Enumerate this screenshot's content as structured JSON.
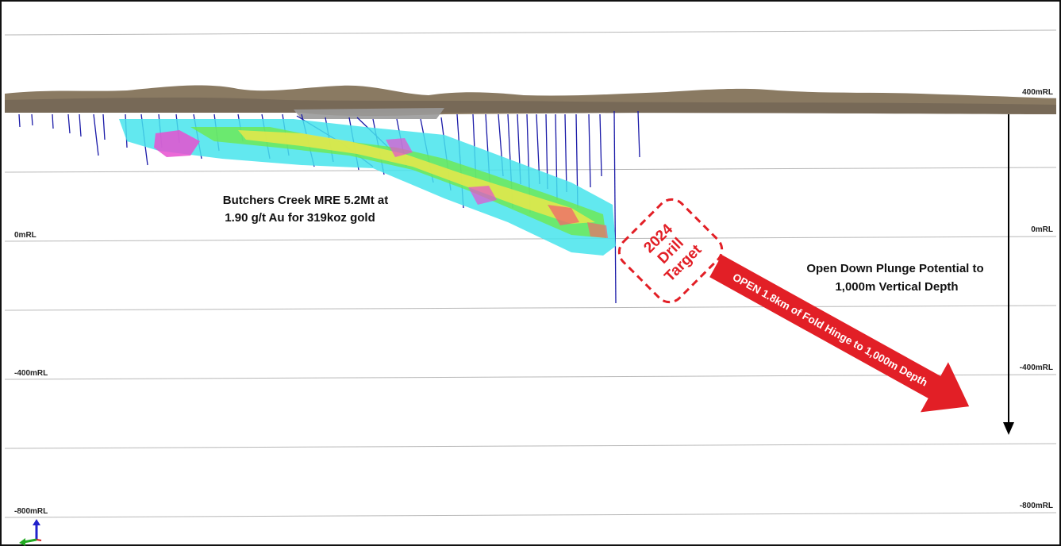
{
  "section": {
    "rl_labels_left": [
      "0mRL",
      "-400mRL",
      "-800mRL"
    ],
    "rl_labels_right": [
      "400mRL",
      "0mRL",
      "-400mRL",
      "-800mRL"
    ],
    "resource_annotation": [
      "Butchers Creek MRE 5.2Mt at",
      "1.90 g/t Au for 319koz gold"
    ],
    "drill_target": [
      "2024",
      "Drill",
      "Target"
    ],
    "open_arrow_text": "OPEN 1.8km of Fold Hinge to 1,000m Depth",
    "plunge_annotation": [
      "Open Down Plunge Potential to",
      "1,000m Vertical Depth"
    ]
  },
  "colors": {
    "arrow_red": "#e21f26",
    "drill_trace_blue": "#1a1aa8",
    "grid_line": "#b8b8b8",
    "terrain": "#8a7a62",
    "block_cyan": "#47e4ec",
    "block_green": "#6ee84f",
    "block_yellow": "#e8e84a",
    "block_magenta": "#e84fd0"
  },
  "icons": [
    "axis-triad-icon"
  ]
}
